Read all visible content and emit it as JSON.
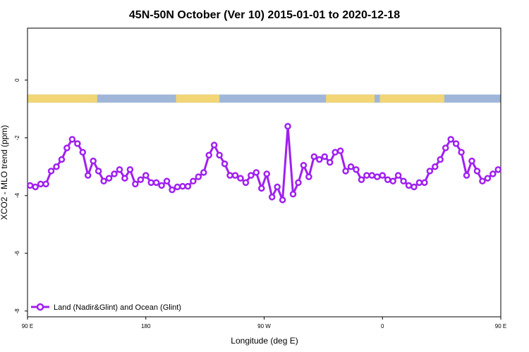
{
  "chart_data": {
    "type": "line",
    "title": "45N-50N October (Ver 10)   2015-01-01 to 2020-12-18",
    "xlabel": "Longitude (deg E)",
    "ylabel": "XCO2 - MLO trend (ppm)",
    "xlim": [
      90,
      450
    ],
    "ylim": [
      -8.2,
      1.8
    ],
    "xticks": [
      {
        "value": 90,
        "label": "90 E"
      },
      {
        "value": 180,
        "label": "180"
      },
      {
        "value": 270,
        "label": "90 W"
      },
      {
        "value": 360,
        "label": "0"
      },
      {
        "value": 450,
        "label": "90 E"
      },
      {
        "value": 540,
        "label": "180"
      }
    ],
    "yticks": [
      {
        "value": 0,
        "label": "0"
      },
      {
        "value": -2,
        "label": "-2"
      },
      {
        "value": -4,
        "label": "-4"
      },
      {
        "value": -6,
        "label": "-6"
      },
      {
        "value": -8,
        "label": "-8"
      }
    ],
    "grid": false,
    "legend_position": "bottom-left",
    "colors": {
      "series": "#a020f0",
      "land": "#f2d675",
      "ocean": "#9fb6d8"
    },
    "landmask_band": {
      "y_range": [
        -0.5,
        -0.78
      ],
      "land_ranges": [
        [
          90,
          143
        ],
        [
          203,
          236
        ],
        [
          317,
          354
        ],
        [
          358,
          407
        ]
      ]
    },
    "series": [
      {
        "name": "Land (Nadir&Glint) and Ocean (Glint)",
        "x": [
          92,
          96,
          100,
          104,
          108,
          112,
          116,
          120,
          124,
          128,
          132,
          136,
          140,
          144,
          148,
          152,
          156,
          160,
          164,
          168,
          172,
          176,
          180,
          184,
          188,
          192,
          196,
          200,
          204,
          208,
          212,
          216,
          220,
          224,
          228,
          232,
          236,
          240,
          244,
          248,
          252,
          256,
          260,
          264,
          268,
          272,
          276,
          280,
          284,
          288,
          292,
          296,
          300,
          304,
          308,
          312,
          316,
          320,
          324,
          328,
          332,
          336,
          340,
          344,
          348,
          352,
          356,
          360,
          364,
          368,
          372,
          376,
          380,
          384,
          388,
          392,
          396,
          400,
          404,
          408,
          412,
          416,
          420,
          424,
          428,
          432,
          436,
          440,
          444,
          448
        ],
        "y": [
          -3.65,
          -3.7,
          -3.6,
          -3.6,
          -3.15,
          -3.0,
          -2.75,
          -2.35,
          -2.05,
          -2.2,
          -2.5,
          -3.3,
          -2.8,
          -3.15,
          -3.5,
          -3.4,
          -3.25,
          -3.1,
          -3.4,
          -3.1,
          -3.6,
          -3.45,
          -3.3,
          -3.55,
          -3.55,
          -3.65,
          -3.5,
          -3.8,
          -3.7,
          -3.68,
          -3.68,
          -3.5,
          -3.35,
          -3.2,
          -2.6,
          -2.25,
          -2.6,
          -2.9,
          -3.3,
          -3.3,
          -3.4,
          -3.55,
          -3.3,
          -3.2,
          -3.75,
          -3.25,
          -4.05,
          -3.7,
          -4.15,
          -1.6,
          -3.95,
          -3.55,
          -2.95,
          -3.35,
          -2.65,
          -2.75,
          -2.65,
          -2.85,
          -2.5,
          -2.45,
          -3.15,
          -3.0,
          -3.1,
          -3.45,
          -3.3,
          -3.3,
          -3.35,
          -3.3,
          -3.45,
          -3.5,
          -3.3,
          -3.5,
          -3.65,
          -3.7,
          -3.55,
          -3.55,
          -3.15,
          -3.0,
          -2.75,
          -2.35,
          -2.05,
          -2.2,
          -2.5,
          -3.3,
          -2.8,
          -3.15,
          -3.5,
          -3.4,
          -3.25,
          -3.1
        ]
      }
    ]
  }
}
